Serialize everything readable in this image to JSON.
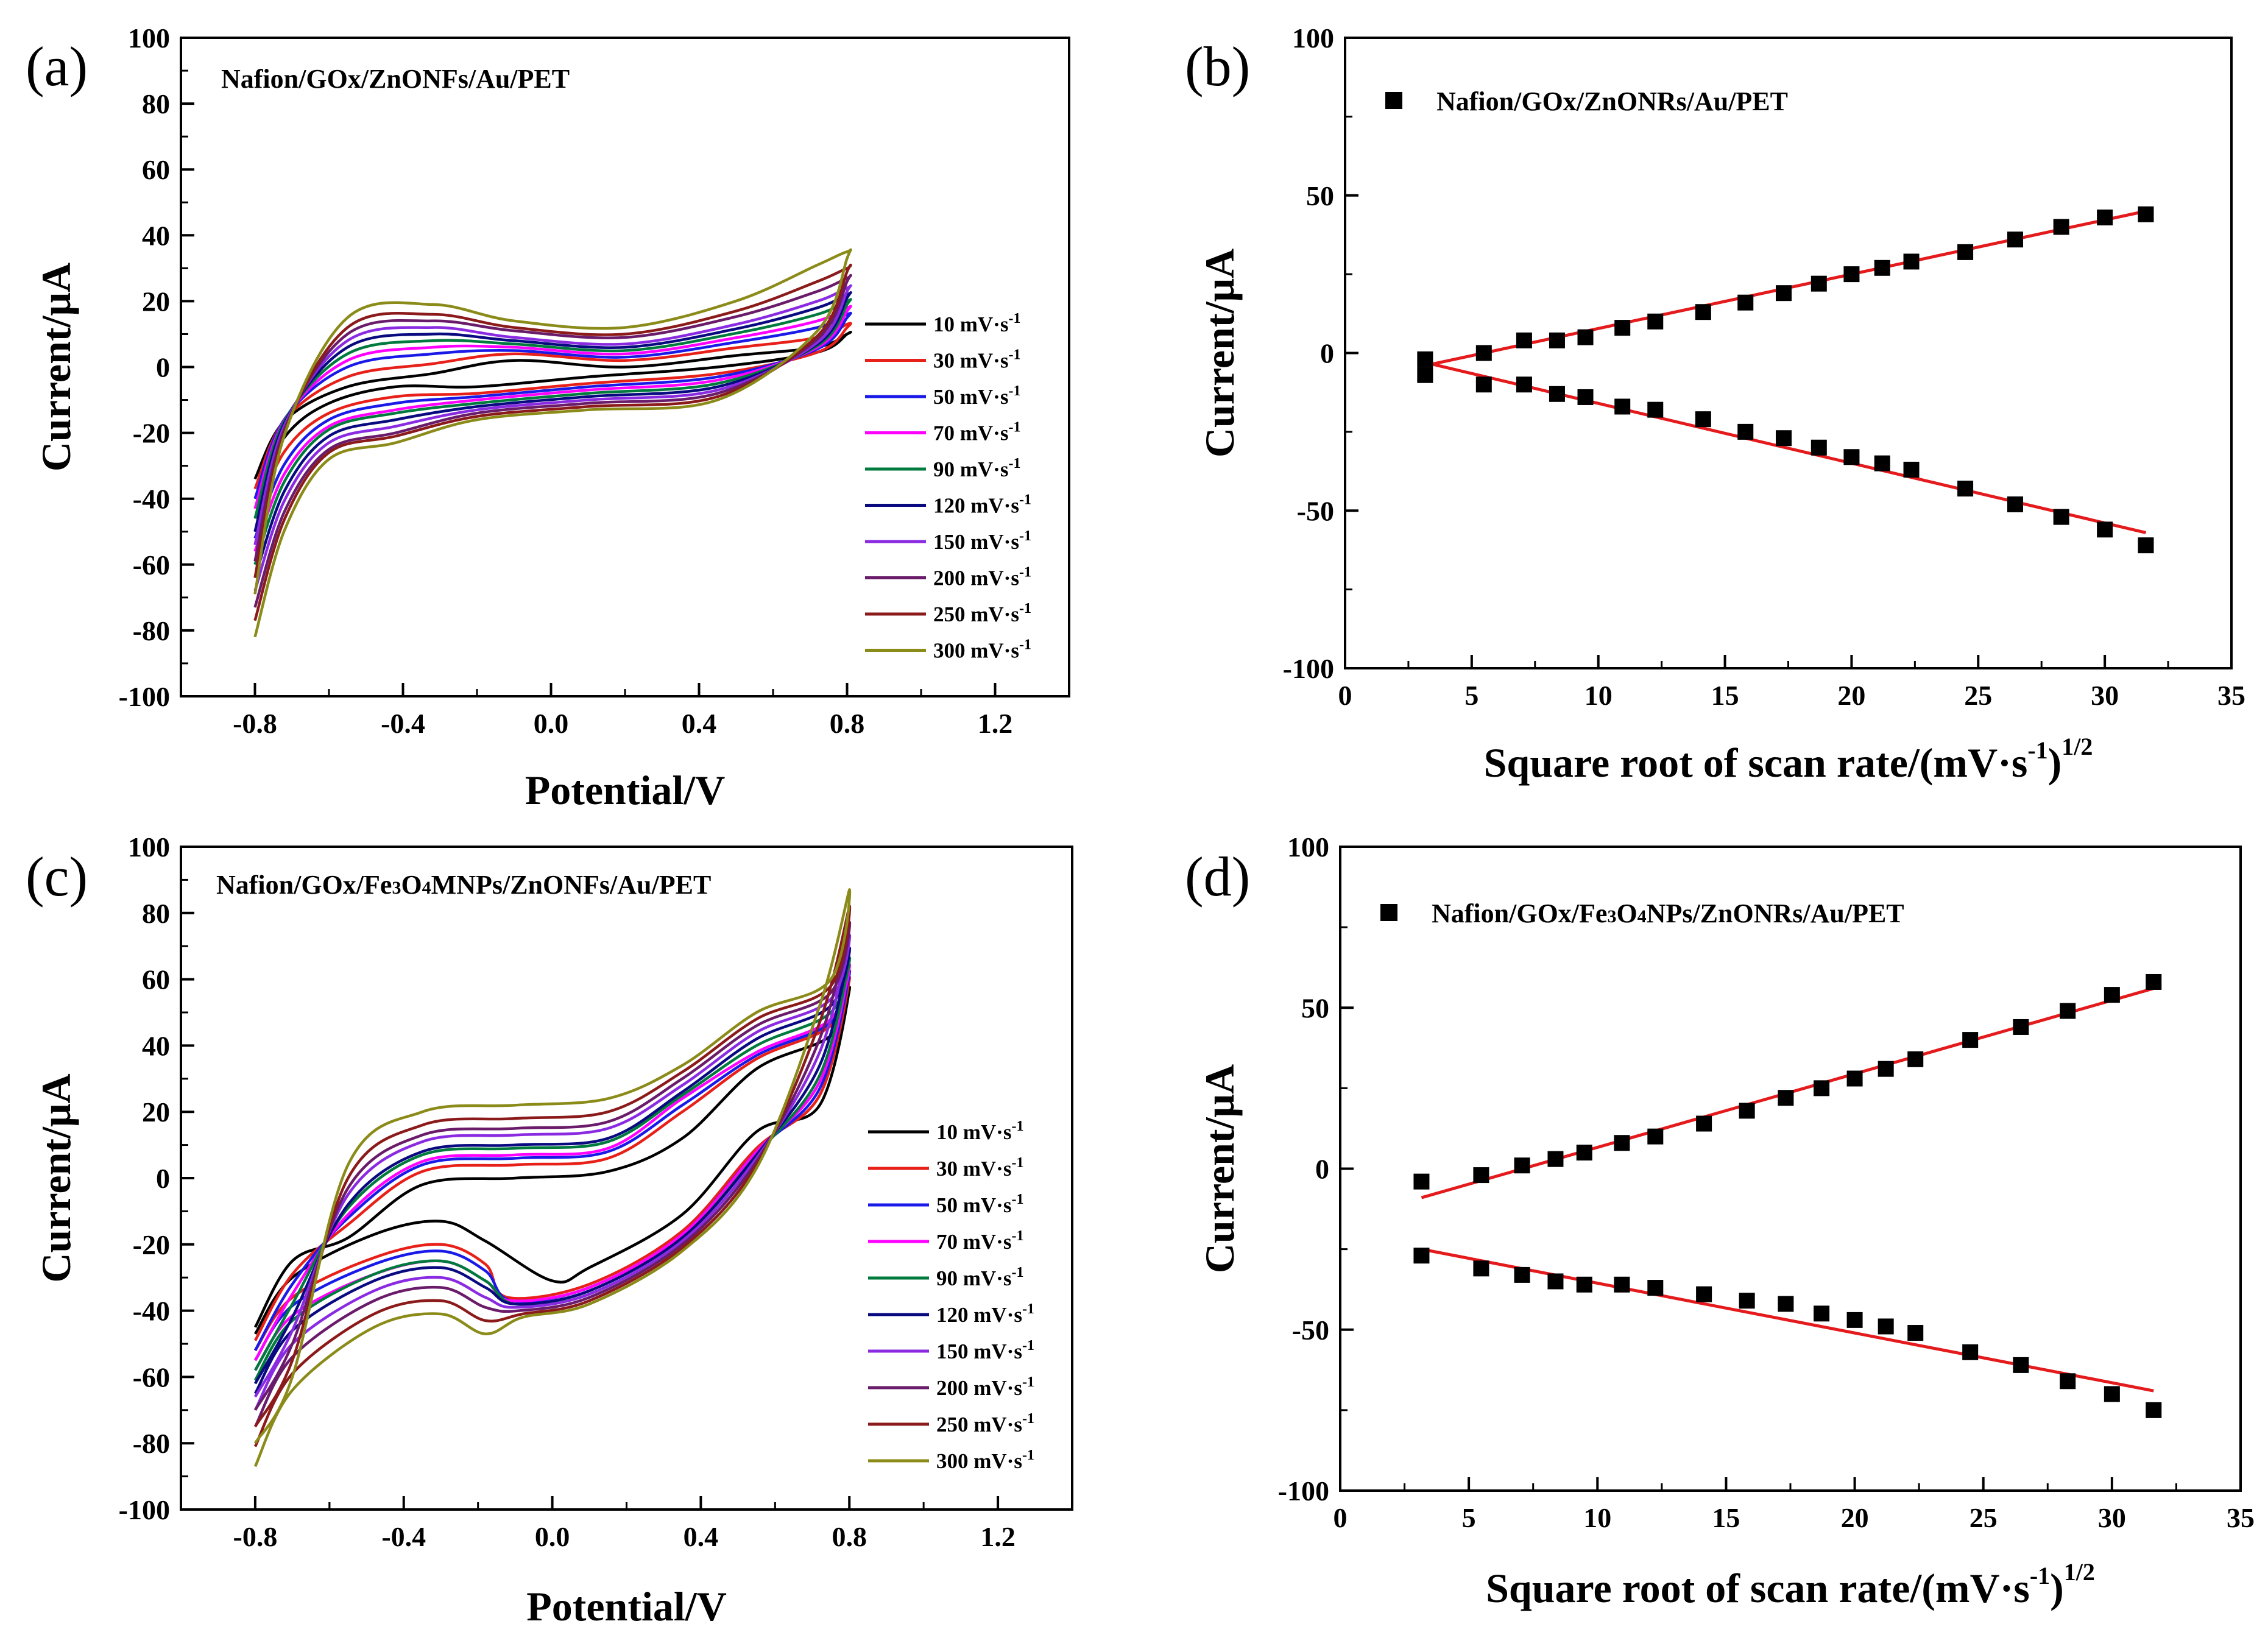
{
  "chart_data": [
    {
      "panel": "(a)",
      "type": "line",
      "title": "Nafion/GOx/ZnONFs/Au/PET",
      "xlabel": "Potential/V",
      "ylabel": "Current/μA",
      "xlim": [
        -1.0,
        1.4
      ],
      "ylim": [
        -100,
        100
      ],
      "xticks": [
        "-0.8",
        "-0.4",
        "0.0",
        "0.4",
        "0.8",
        "1.2"
      ],
      "yticks": [
        "-100",
        "-80",
        "-60",
        "-40",
        "-20",
        "0",
        "20",
        "40",
        "60",
        "80",
        "100"
      ],
      "legend_position": "right",
      "series": [
        {
          "name": "10 mV·s",
          "color": "#000000",
          "values": {
            "top_start": -34,
            "top_hump": -2,
            "top_mid": 0,
            "top_end": 10,
            "bottom_end": 12,
            "bottom_mid": -3,
            "bottom_trough": -6,
            "bottom_start": -40
          }
        },
        {
          "name": "30 mV·s",
          "color": "#e8201a",
          "values": {
            "top_start": -37,
            "top_hump": 1,
            "top_mid": 2,
            "top_end": 13,
            "bottom_end": 14,
            "bottom_mid": -5,
            "bottom_trough": -9,
            "bottom_start": -46
          }
        },
        {
          "name": "50 mV·s",
          "color": "#1a1ae8",
          "values": {
            "top_start": -40,
            "top_hump": 4,
            "top_mid": 3,
            "top_end": 16,
            "bottom_end": 17,
            "bottom_mid": -6,
            "bottom_trough": -11,
            "bottom_start": -52
          }
        },
        {
          "name": "70 mV·s",
          "color": "#ff00ff",
          "values": {
            "top_start": -43,
            "top_hump": 6,
            "top_mid": 4,
            "top_end": 18,
            "bottom_end": 19,
            "bottom_mid": -7,
            "bottom_trough": -13,
            "bottom_start": -56
          }
        },
        {
          "name": "90 mV·s",
          "color": "#007a3d",
          "values": {
            "top_start": -46,
            "top_hump": 8,
            "top_mid": 5,
            "top_end": 20,
            "bottom_end": 21,
            "bottom_mid": -8,
            "bottom_trough": -14,
            "bottom_start": -60
          }
        },
        {
          "name": "120 mV·s",
          "color": "#0a0a80",
          "values": {
            "top_start": -50,
            "top_hump": 10,
            "top_mid": 6,
            "top_end": 22,
            "bottom_end": 23,
            "bottom_mid": -9,
            "bottom_trough": -16,
            "bottom_start": -64
          }
        },
        {
          "name": "150 mV·s",
          "color": "#8a2be2",
          "values": {
            "top_start": -54,
            "top_hump": 12,
            "top_mid": 7,
            "top_end": 24,
            "bottom_end": 25,
            "bottom_mid": -10,
            "bottom_trough": -18,
            "bottom_start": -68
          }
        },
        {
          "name": "200 mV·s",
          "color": "#6a1b6a",
          "values": {
            "top_start": -59,
            "top_hump": 14,
            "top_mid": 9,
            "top_end": 27,
            "bottom_end": 28,
            "bottom_mid": -11,
            "bottom_trough": -20,
            "bottom_start": -73
          }
        },
        {
          "name": "250 mV·s",
          "color": "#8b1a1a",
          "values": {
            "top_start": -64,
            "top_hump": 16,
            "top_mid": 10,
            "top_end": 30,
            "bottom_end": 31,
            "bottom_mid": -12,
            "bottom_trough": -21,
            "bottom_start": -77
          }
        },
        {
          "name": "300 mV·s",
          "color": "#8b8b1a",
          "values": {
            "top_start": -69,
            "top_hump": 19,
            "top_mid": 12,
            "top_end": 35,
            "bottom_end": 35,
            "bottom_mid": -13,
            "bottom_trough": -23,
            "bottom_start": -82
          }
        }
      ]
    },
    {
      "panel": "(b)",
      "type": "scatter",
      "title": "Nafion/GOx/ZnONRs/Au/PET",
      "xlabel": "Square root of scan rate/(mV·s",
      "xlabel_sup1": "-1",
      "xlabel_close": ")",
      "xlabel_sup2": "1/2",
      "ylabel": "Current/μA",
      "xlim": [
        0,
        35
      ],
      "ylim": [
        -100,
        100
      ],
      "xticks": [
        "0",
        "5",
        "10",
        "15",
        "20",
        "25",
        "30",
        "35"
      ],
      "yticks": [
        "-100",
        "-50",
        "0",
        "50",
        "100"
      ],
      "legend_position": "top-left",
      "x": [
        3.16,
        5.48,
        7.07,
        8.37,
        9.49,
        10.95,
        12.25,
        14.14,
        15.81,
        17.32,
        18.71,
        20.0,
        21.21,
        22.36,
        24.49,
        26.46,
        28.28,
        30.0,
        31.62
      ],
      "series": [
        {
          "name": "anodic",
          "values": [
            -2,
            0,
            4,
            4,
            5,
            8,
            10,
            13,
            16,
            19,
            22,
            25,
            27,
            29,
            32,
            36,
            40,
            43,
            44
          ]
        },
        {
          "name": "cathodic",
          "values": [
            -7,
            -10,
            -10,
            -13,
            -14,
            -17,
            -18,
            -21,
            -25,
            -27,
            -30,
            -33,
            -35,
            -37,
            -43,
            -48,
            -52,
            -56,
            -61
          ]
        }
      ],
      "fits": [
        {
          "x": [
            3.16,
            31.62
          ],
          "y": [
            -4,
            45
          ]
        },
        {
          "x": [
            3.16,
            31.62
          ],
          "y": [
            -3,
            -57
          ]
        }
      ]
    },
    {
      "panel": "(c)",
      "type": "line",
      "title_parts": [
        "Nafion/GOx/Fe",
        "3",
        "O",
        "4",
        "MNPs/ZnONFs/Au/PET"
      ],
      "xlabel": "Potential/V",
      "ylabel": "Current/μA",
      "xlim": [
        -1.0,
        1.4
      ],
      "ylim": [
        -100,
        100
      ],
      "xticks": [
        "-0.8",
        "-0.4",
        "0.0",
        "0.4",
        "0.8",
        "1.2"
      ],
      "yticks": [
        "-100",
        "-80",
        "-60",
        "-40",
        "-20",
        "0",
        "20",
        "40",
        "60",
        "80",
        "100"
      ],
      "legend_position": "right",
      "series": [
        {
          "name": "10 mV·s",
          "color": "#000000",
          "values": {
            "start_low": -47,
            "lower_hump": -13,
            "peak_x": 0.0,
            "peak_y": -31,
            "end": 57,
            "upper_flat": 0,
            "upper_mid": 12,
            "shoulder": 33,
            "upper_start": -45
          }
        },
        {
          "name": "30 mV·s",
          "color": "#e8201a",
          "values": {
            "start_low": -52,
            "lower_hump": -20,
            "peak_x": -0.12,
            "peak_y": -36,
            "end": 60,
            "upper_flat": 4,
            "upper_mid": 20,
            "shoulder": 36,
            "upper_start": -49
          }
        },
        {
          "name": "50 mV·s",
          "color": "#1a1ae8",
          "values": {
            "start_low": -55,
            "lower_hump": -22,
            "peak_x": -0.11,
            "peak_y": -37,
            "end": 62,
            "upper_flat": 6,
            "upper_mid": 22,
            "shoulder": 37,
            "upper_start": -52
          }
        },
        {
          "name": "70 mV·s",
          "color": "#ff00ff",
          "values": {
            "start_low": -58,
            "lower_hump": -25,
            "peak_x": -0.11,
            "peak_y": -37,
            "end": 64,
            "upper_flat": 7,
            "upper_mid": 24,
            "shoulder": 38,
            "upper_start": -55
          }
        },
        {
          "name": "90 mV·s",
          "color": "#007a3d",
          "values": {
            "start_low": -61,
            "lower_hump": -25,
            "peak_x": -0.1,
            "peak_y": -38,
            "end": 66,
            "upper_flat": 9,
            "upper_mid": 25,
            "shoulder": 40,
            "upper_start": -58
          }
        },
        {
          "name": "120 mV·s",
          "color": "#0a0a80",
          "values": {
            "start_low": -65,
            "lower_hump": -27,
            "peak_x": -0.1,
            "peak_y": -38,
            "end": 69,
            "upper_flat": 10,
            "upper_mid": 26,
            "shoulder": 42,
            "upper_start": -62
          }
        },
        {
          "name": "150 mV·s",
          "color": "#8a2be2",
          "values": {
            "start_low": -70,
            "lower_hump": -30,
            "peak_x": -0.1,
            "peak_y": -39,
            "end": 73,
            "upper_flat": 13,
            "upper_mid": 28,
            "shoulder": 44,
            "upper_start": -66
          }
        },
        {
          "name": "200 mV·s",
          "color": "#6a1b6a",
          "values": {
            "start_low": -75,
            "lower_hump": -33,
            "peak_x": -0.09,
            "peak_y": -40,
            "end": 77,
            "upper_flat": 15,
            "upper_mid": 30,
            "shoulder": 46,
            "upper_start": -70
          }
        },
        {
          "name": "250 mV·s",
          "color": "#8b1a1a",
          "values": {
            "start_low": -81,
            "lower_hump": -37,
            "peak_x": -0.08,
            "peak_y": -41,
            "end": 82,
            "upper_flat": 18,
            "upper_mid": 32,
            "shoulder": 48,
            "upper_start": -75
          }
        },
        {
          "name": "300 mV·s",
          "color": "#8b8b1a",
          "values": {
            "start_low": -87,
            "lower_hump": -41,
            "peak_x": -0.08,
            "peak_y": -42,
            "end": 87,
            "upper_flat": 22,
            "upper_mid": 34,
            "shoulder": 50,
            "upper_start": -80
          }
        }
      ]
    },
    {
      "panel": "(d)",
      "type": "scatter",
      "title_parts": [
        "Nafion/GOx/Fe",
        "3",
        "O",
        "4",
        "NPs/ZnONRs/Au/PET"
      ],
      "xlabel": "Square root of scan rate/(mV·s",
      "xlabel_sup1": "-1",
      "xlabel_close": ")",
      "xlabel_sup2": "1/2",
      "ylabel": "Current/μA",
      "xlim": [
        0,
        35
      ],
      "ylim": [
        -100,
        100
      ],
      "xticks": [
        "0",
        "5",
        "10",
        "15",
        "20",
        "25",
        "30",
        "35"
      ],
      "yticks": [
        "-100",
        "-50",
        "0",
        "50",
        "100"
      ],
      "legend_position": "top-left",
      "x": [
        3.16,
        5.48,
        7.07,
        8.37,
        9.49,
        10.95,
        12.25,
        14.14,
        15.81,
        17.32,
        18.71,
        20.0,
        21.21,
        22.36,
        24.49,
        26.46,
        28.28,
        30.0,
        31.62
      ],
      "series": [
        {
          "name": "anodic",
          "values": [
            -4,
            -2,
            1,
            3,
            5,
            8,
            10,
            14,
            18,
            22,
            25,
            28,
            31,
            34,
            40,
            44,
            49,
            54,
            58
          ]
        },
        {
          "name": "cathodic",
          "values": [
            -27,
            -31,
            -33,
            -35,
            -36,
            -36,
            -37,
            -39,
            -41,
            -42,
            -45,
            -47,
            -49,
            -51,
            -57,
            -61,
            -66,
            -70,
            -75
          ]
        }
      ],
      "fits": [
        {
          "x": [
            3.16,
            31.62
          ],
          "y": [
            -9,
            56
          ]
        },
        {
          "x": [
            3.16,
            31.62
          ],
          "y": [
            -25,
            -69
          ]
        }
      ]
    }
  ],
  "legend_sup": "-1",
  "units": {
    "micro": "μ"
  }
}
